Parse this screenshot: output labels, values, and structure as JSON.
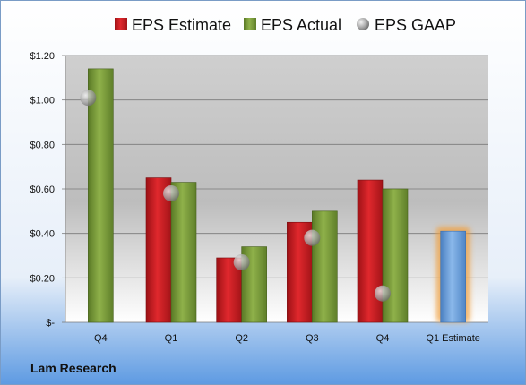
{
  "company": "Lam Research",
  "chart_data": {
    "type": "bar",
    "categories": [
      "Q4",
      "Q1",
      "Q2",
      "Q3",
      "Q4",
      "Q1 Estimate"
    ],
    "ylim": [
      0,
      1.2
    ],
    "yticks": [
      0,
      0.2,
      0.4,
      0.6,
      0.8,
      1.0,
      1.2
    ],
    "ytick_labels": [
      "$-",
      "$0.20",
      "$0.40",
      "$0.60",
      "$0.80",
      "$1.00",
      "$1.20"
    ],
    "grid": true,
    "legend": "top",
    "series": [
      {
        "name": "EPS Estimate",
        "color": "#d41f24",
        "values": [
          null,
          0.65,
          0.29,
          0.45,
          0.64,
          null
        ]
      },
      {
        "name": "EPS Actual",
        "color": "#7fa13a",
        "values": [
          1.14,
          0.63,
          0.34,
          0.5,
          0.6,
          null
        ]
      },
      {
        "name": "EPS GAAP",
        "color": "#a0a0a0",
        "values": [
          1.01,
          0.58,
          0.27,
          0.38,
          0.13,
          null
        ]
      }
    ],
    "estimate": {
      "category": "Q1 Estimate",
      "value": 0.41,
      "color": "#6a9fd8",
      "glow": "#f0a040"
    }
  }
}
